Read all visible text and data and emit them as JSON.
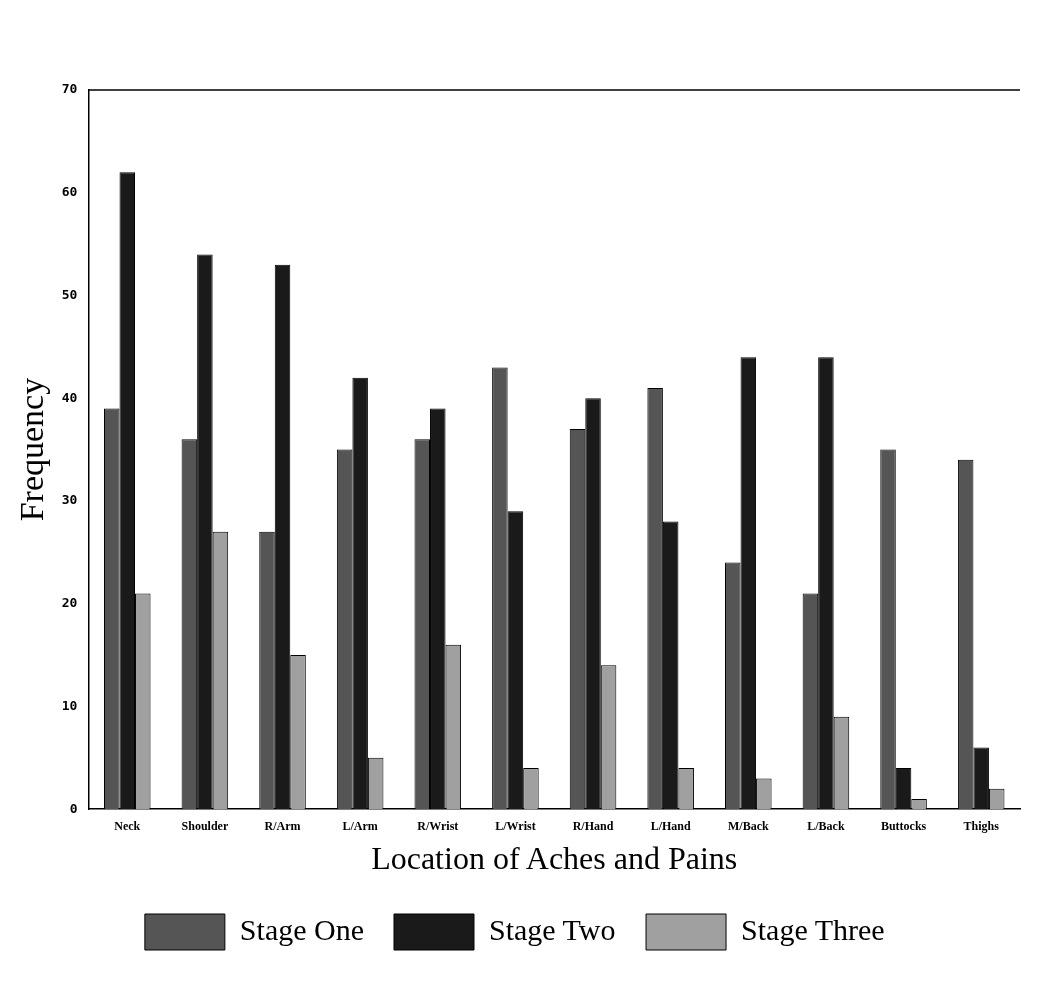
{
  "chart_data": {
    "type": "bar",
    "xlabel": "Location of Aches and Pains",
    "ylabel": "Frequency",
    "categories": [
      "Neck",
      "Shoulder",
      "R/Arm",
      "L/Arm",
      "R/Wrist",
      "L/Wrist",
      "R/Hand",
      "L/Hand",
      "M/Back",
      "L/Back",
      "Buttocks",
      "Thighs"
    ],
    "series": [
      {
        "name": "Stage One",
        "color": "#555555",
        "values": [
          39,
          36,
          27,
          35,
          36,
          43,
          37,
          41,
          24,
          21,
          35,
          34
        ]
      },
      {
        "name": "Stage Two",
        "color": "#1a1a1a",
        "values": [
          62,
          54,
          53,
          42,
          39,
          29,
          40,
          28,
          44,
          44,
          4,
          6
        ]
      },
      {
        "name": "Stage Three",
        "color": "#a0a0a0",
        "values": [
          21,
          27,
          15,
          5,
          16,
          4,
          14,
          4,
          3,
          9,
          1,
          2
        ]
      }
    ],
    "ylim": [
      0,
      70
    ],
    "yticks": [
      0,
      10,
      20,
      30,
      40,
      50,
      60,
      70
    ],
    "grid": false,
    "legend": "bottom"
  }
}
